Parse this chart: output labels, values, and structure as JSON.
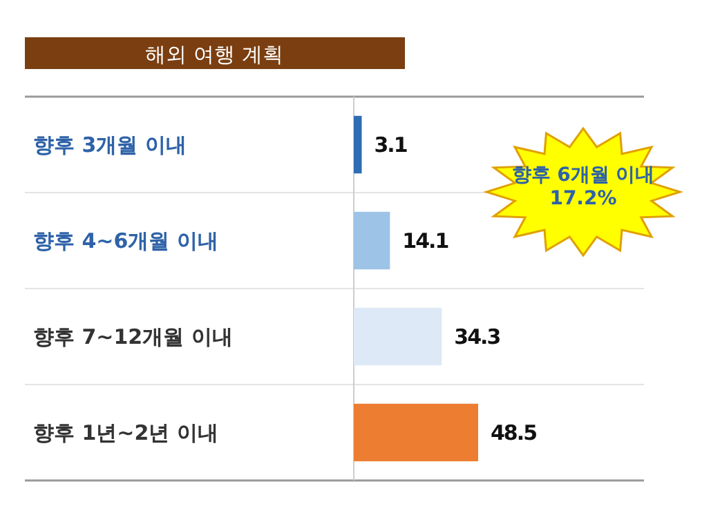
{
  "chart_data": {
    "type": "bar",
    "orientation": "horizontal",
    "title": "해외 여행 계획",
    "categories": [
      "향후 3개월 이내",
      "향후 4~6개월 이내",
      "향후 7~12개월 이내",
      "향후 1년~2년 이내"
    ],
    "values": [
      3.1,
      14.1,
      34.3,
      48.5
    ],
    "colors": [
      "#2e6db4",
      "#9dc3e6",
      "#dde9f6",
      "#ed7d31"
    ],
    "data_labels": true,
    "grid": "y",
    "tick_labels": "y",
    "annotations": [
      "향후 6개월 이내\n17.2%"
    ]
  }
}
